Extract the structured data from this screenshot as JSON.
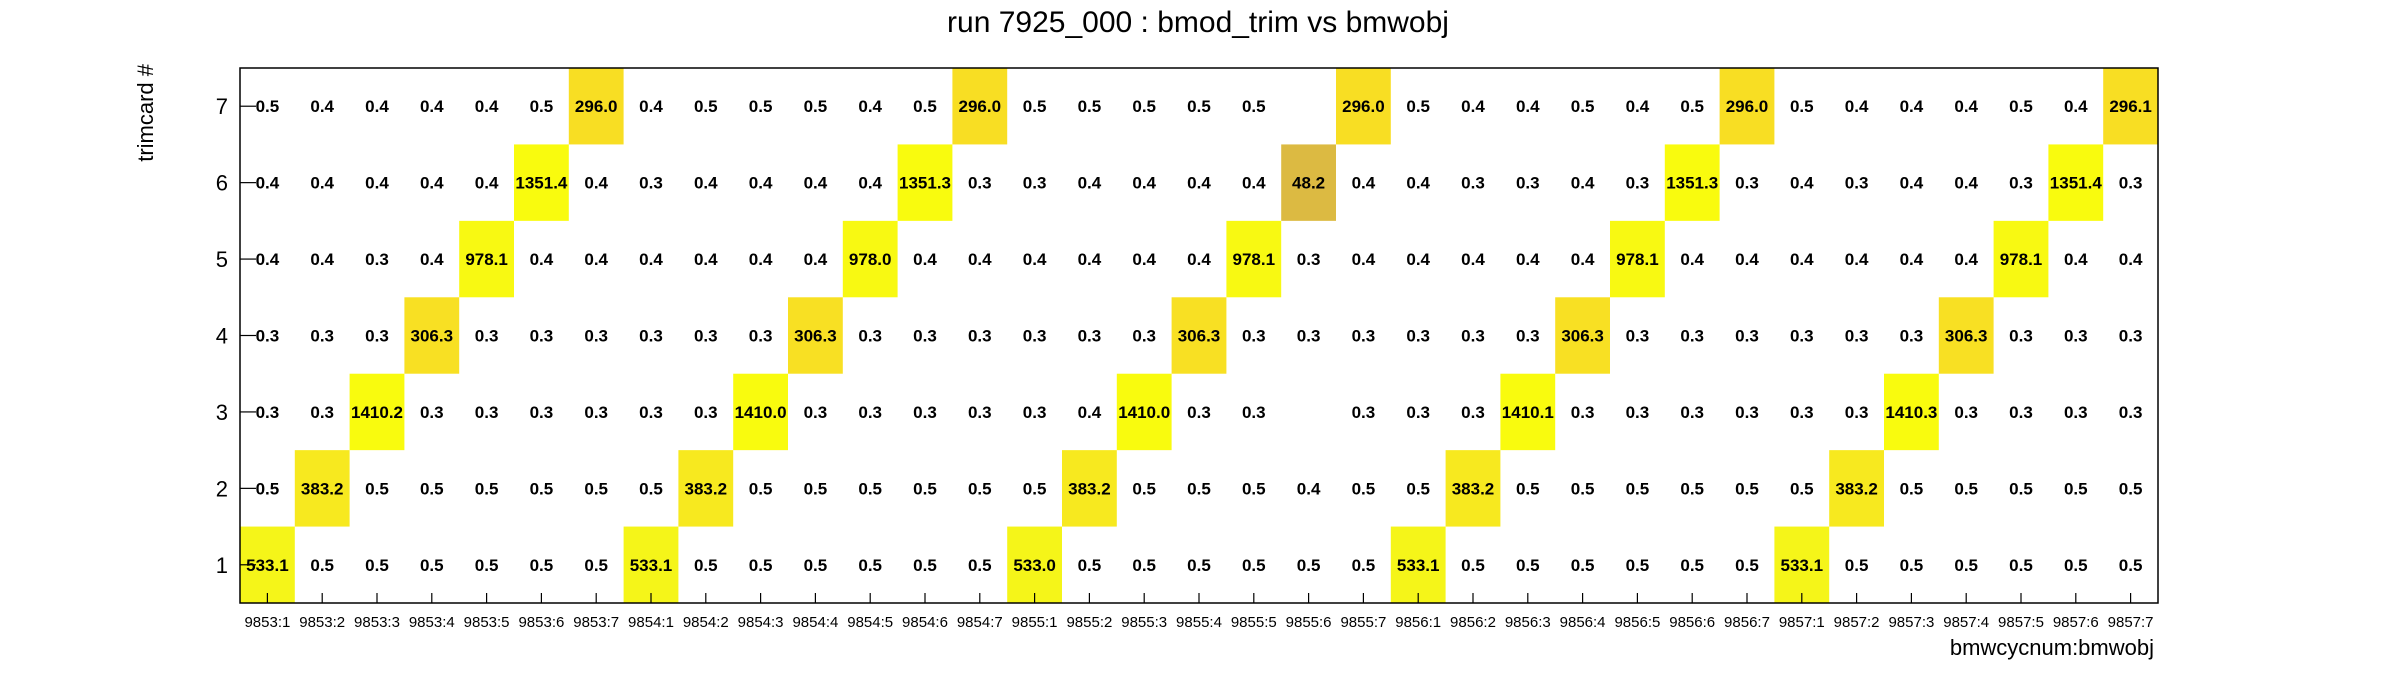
{
  "chart_data": {
    "type": "heatmap",
    "title": "run 7925_000 : bmod_trim vs bmwobj",
    "xlabel": "bmwcycnum:bmwobj",
    "ylabel": "trimcard #",
    "x_categories": [
      "9853:1",
      "9853:2",
      "9853:3",
      "9853:4",
      "9853:5",
      "9853:6",
      "9853:7",
      "9854:1",
      "9854:2",
      "9854:3",
      "9854:4",
      "9854:5",
      "9854:6",
      "9854:7",
      "9855:1",
      "9855:2",
      "9855:3",
      "9855:4",
      "9855:5",
      "9855:6",
      "9855:7",
      "9856:1",
      "9856:2",
      "9856:3",
      "9856:4",
      "9856:5",
      "9856:6",
      "9856:7",
      "9857:1",
      "9857:2",
      "9857:3",
      "9857:4",
      "9857:5",
      "9857:6",
      "9857:7"
    ],
    "y_categories": [
      "1",
      "2",
      "3",
      "4",
      "5",
      "6",
      "7"
    ],
    "rows": [
      {
        "trimcard": "1",
        "values": [
          533.1,
          0.5,
          0.5,
          0.5,
          0.5,
          0.5,
          0.5,
          533.1,
          0.5,
          0.5,
          0.5,
          0.5,
          0.5,
          0.5,
          533.0,
          0.5,
          0.5,
          0.5,
          0.5,
          0.5,
          0.5,
          533.1,
          0.5,
          0.5,
          0.5,
          0.5,
          0.5,
          0.5,
          533.1,
          0.5,
          0.5,
          0.5,
          0.5,
          0.5,
          0.5
        ]
      },
      {
        "trimcard": "2",
        "values": [
          0.5,
          383.2,
          0.5,
          0.5,
          0.5,
          0.5,
          0.5,
          0.5,
          383.2,
          0.5,
          0.5,
          0.5,
          0.5,
          0.5,
          0.5,
          383.2,
          0.5,
          0.5,
          0.5,
          0.4,
          0.5,
          0.5,
          383.2,
          0.5,
          0.5,
          0.5,
          0.5,
          0.5,
          0.5,
          383.2,
          0.5,
          0.5,
          0.5,
          0.5,
          0.5
        ]
      },
      {
        "trimcard": "3",
        "values": [
          0.3,
          0.3,
          1410.2,
          0.3,
          0.3,
          0.3,
          0.3,
          0.3,
          0.3,
          1410.0,
          0.3,
          0.3,
          0.3,
          0.3,
          0.3,
          0.4,
          1410.0,
          0.3,
          0.3,
          null,
          0.3,
          0.3,
          0.3,
          1410.1,
          0.3,
          0.3,
          0.3,
          0.3,
          0.3,
          0.3,
          1410.3,
          0.3,
          0.3,
          0.3,
          0.3
        ]
      },
      {
        "trimcard": "4",
        "values": [
          0.3,
          0.3,
          0.3,
          306.3,
          0.3,
          0.3,
          0.3,
          0.3,
          0.3,
          0.3,
          306.3,
          0.3,
          0.3,
          0.3,
          0.3,
          0.3,
          0.3,
          306.3,
          0.3,
          0.3,
          0.3,
          0.3,
          0.3,
          0.3,
          306.3,
          0.3,
          0.3,
          0.3,
          0.3,
          0.3,
          0.3,
          306.3,
          0.3,
          0.3,
          0.3
        ]
      },
      {
        "trimcard": "5",
        "values": [
          0.4,
          0.4,
          0.3,
          0.4,
          978.1,
          0.4,
          0.4,
          0.4,
          0.4,
          0.4,
          0.4,
          978.0,
          0.4,
          0.4,
          0.4,
          0.4,
          0.4,
          0.4,
          978.1,
          0.3,
          0.4,
          0.4,
          0.4,
          0.4,
          0.4,
          978.1,
          0.4,
          0.4,
          0.4,
          0.4,
          0.4,
          0.4,
          978.1,
          0.4,
          0.4
        ]
      },
      {
        "trimcard": "6",
        "values": [
          0.4,
          0.4,
          0.4,
          0.4,
          0.4,
          1351.4,
          0.4,
          0.3,
          0.4,
          0.4,
          0.4,
          0.4,
          1351.3,
          0.3,
          0.3,
          0.4,
          0.4,
          0.4,
          0.4,
          48.2,
          0.4,
          0.4,
          0.3,
          0.3,
          0.4,
          0.3,
          1351.3,
          0.3,
          0.4,
          0.3,
          0.4,
          0.4,
          0.3,
          1351.4,
          0.3
        ]
      },
      {
        "trimcard": "7",
        "values": [
          0.5,
          0.4,
          0.4,
          0.4,
          0.4,
          0.5,
          296.0,
          0.4,
          0.5,
          0.5,
          0.5,
          0.4,
          0.5,
          296.0,
          0.5,
          0.5,
          0.5,
          0.5,
          0.5,
          null,
          296.0,
          0.5,
          0.4,
          0.4,
          0.5,
          0.4,
          0.5,
          296.0,
          0.5,
          0.4,
          0.4,
          0.4,
          0.5,
          0.4,
          296.1
        ]
      }
    ],
    "color_scale": {
      "min": 0,
      "max": 1410.3,
      "stops": [
        "#ffffff",
        "#2fb28a",
        "#4fbd7a",
        "#c4b849",
        "#e5bb40",
        "#fbc82c",
        "#f5f51a",
        "#f9fb0e"
      ]
    },
    "grid": false,
    "legend": "none"
  }
}
